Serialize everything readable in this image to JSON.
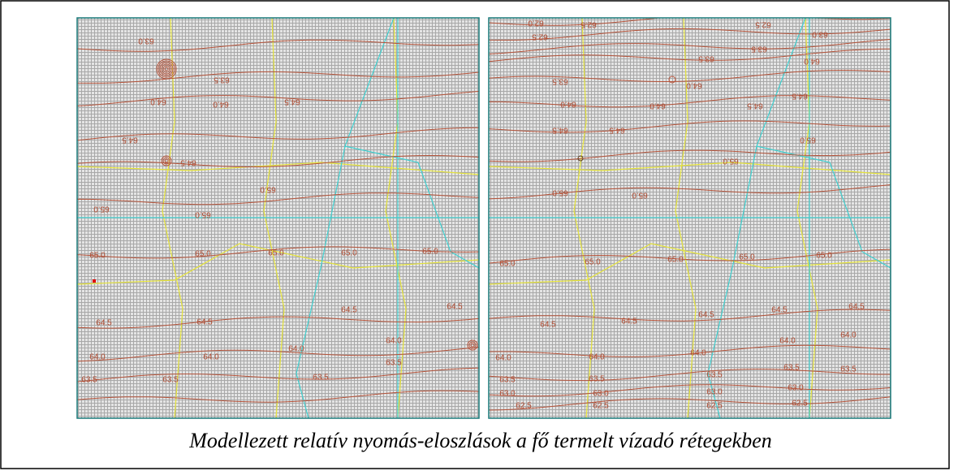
{
  "figure": {
    "caption": "Modellezett relatív nyomás-eloszlások a fő termelt vízadó rétegekben",
    "panels": [
      {
        "contour_labels": [
          "63.0",
          "63.5",
          "64.0",
          "64.0",
          "64.5",
          "64.5",
          "64.5",
          "65.0",
          "65.0",
          "65.0",
          "65.0",
          "65.0",
          "65.0",
          "65.0",
          "65.0",
          "64.5",
          "64.5",
          "64.5",
          "64.5",
          "64.0",
          "64.0",
          "64.0",
          "64.0",
          "63.5",
          "63.5",
          "63.5",
          "63.5"
        ]
      },
      {
        "contour_labels": [
          "62.0",
          "62.5",
          "62.5",
          "62.5",
          "63.0",
          "63.5",
          "63.5",
          "63.5",
          "64.0",
          "64.0",
          "64.0",
          "64.0",
          "64.5",
          "64.5",
          "64.5",
          "64.5",
          "65.0",
          "65.0",
          "65.0",
          "65.0",
          "65.0",
          "65.0",
          "65.0",
          "65.0",
          "65.0",
          "64.5",
          "64.5",
          "64.5",
          "64.5",
          "64.5",
          "64.0",
          "64.0",
          "64.0",
          "64.0",
          "64.0",
          "63.5",
          "63.5",
          "63.5",
          "63.5",
          "63.5",
          "63.0",
          "63.0",
          "63.0",
          "63.0",
          "62.5",
          "62.5",
          "62.5",
          "62.5"
        ]
      }
    ]
  }
}
